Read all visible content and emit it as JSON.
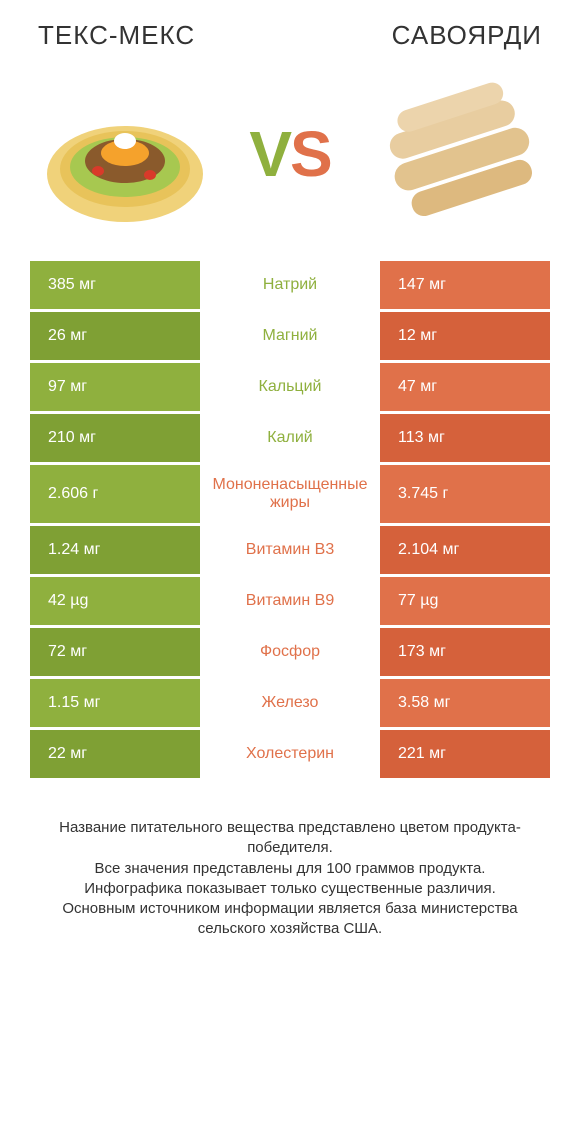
{
  "colors": {
    "green": "#8fb03e",
    "green_dark": "#7fa034",
    "orange": "#e0714a",
    "orange_dark": "#d5613b",
    "text": "#333333",
    "white": "#ffffff"
  },
  "titles": {
    "left": "ТЕКС-МЕКС",
    "right": "САВОЯРДИ"
  },
  "vs": {
    "v": "V",
    "s": "S"
  },
  "rows": [
    {
      "label": "Натрий",
      "left": "385 мг",
      "right": "147 мг",
      "winner": "left",
      "tall": false
    },
    {
      "label": "Магний",
      "left": "26 мг",
      "right": "12 мг",
      "winner": "left",
      "tall": false
    },
    {
      "label": "Кальций",
      "left": "97 мг",
      "right": "47 мг",
      "winner": "left",
      "tall": false
    },
    {
      "label": "Калий",
      "left": "210 мг",
      "right": "113 мг",
      "winner": "left",
      "tall": false
    },
    {
      "label": "Мононенасыщенные жиры",
      "left": "2.606 г",
      "right": "3.745 г",
      "winner": "right",
      "tall": true
    },
    {
      "label": "Витамин B3",
      "left": "1.24 мг",
      "right": "2.104 мг",
      "winner": "right",
      "tall": false
    },
    {
      "label": "Витамин B9",
      "left": "42 µg",
      "right": "77 µg",
      "winner": "right",
      "tall": false
    },
    {
      "label": "Фосфор",
      "left": "72 мг",
      "right": "173 мг",
      "winner": "right",
      "tall": false
    },
    {
      "label": "Железо",
      "left": "1.15 мг",
      "right": "3.58 мг",
      "winner": "right",
      "tall": false
    },
    {
      "label": "Холестерин",
      "left": "22 мг",
      "right": "221 мг",
      "winner": "right",
      "tall": false
    }
  ],
  "footer": "Название питательного вещества представлено цветом продукта-победителя.\nВсе значения представлены для 100 граммов продукта.\nИнфографика показывает только существенные различия.\nОсновным источником информации является база министерства сельского хозяйства США."
}
